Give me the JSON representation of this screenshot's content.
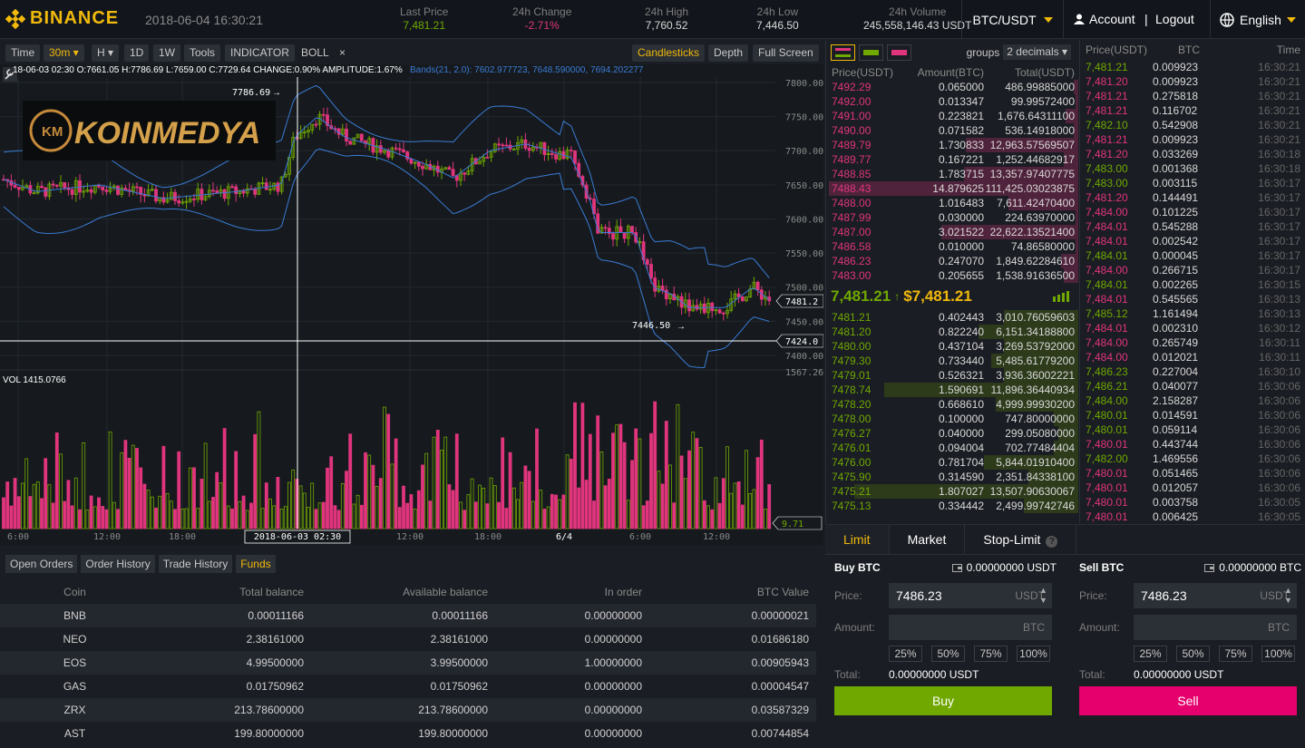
{
  "header": {
    "logo": "BINANCE",
    "datetime": "2018-06-04 16:30:21",
    "stats": [
      {
        "label": "Last Price",
        "value": "7,481.21",
        "color": "#70a800"
      },
      {
        "label": "24h Change",
        "value": "-2.71%",
        "color": "#e0357d"
      },
      {
        "label": "24h High",
        "value": "7,760.52",
        "color": "#d8d8d8"
      },
      {
        "label": "24h Low",
        "value": "7,446.50",
        "color": "#d8d8d8"
      },
      {
        "label": "24h Volume",
        "value": "245,558,146.43 USDT",
        "color": "#d8d8d8"
      }
    ],
    "pair": "BTC/USDT",
    "account": "Account",
    "sep": "|",
    "logout": "Logout",
    "language": "English"
  },
  "toolbar": {
    "time": "Time",
    "interval": "30m",
    "h": "H",
    "d1": "1D",
    "w1": "1W",
    "tools": "Tools",
    "indicator": "INDICATOR",
    "boll": "BOLL",
    "close": "×",
    "candlesticks": "Candlesticks",
    "depth": "Depth",
    "fullscreen": "Full Screen"
  },
  "chart_info": {
    "ohlc": "18-06-03 02:30  O:7661.05 H:7786.69 L:7659.00 C:7729.64 CHANGE:0.90% AMPLITUDE:1.67%",
    "bands": "Bands(21, 2.0): 7602.977723, 7648.590000, 7694.202277",
    "vol": "VOL 1415.0766",
    "high_marker": "7786.69",
    "low_marker": "7446.50",
    "price_tag": "7481.2",
    "cross_tag": "7424.0",
    "vol_max": "1567.26",
    "vol_tag": "9.71",
    "cross_time": "2018-06-03 02:30",
    "watermark": "KOINMEDYA"
  },
  "chart_data": {
    "type": "candlestick",
    "price_ticks": [
      "7800.00",
      "7750.00",
      "7700.00",
      "7650.00",
      "7600.00",
      "7550.00",
      "7500.00",
      "7450.00",
      "7400.00"
    ],
    "time_ticks": [
      "6:00",
      "12:00",
      "18:00",
      "12:00",
      "18:00",
      "6/4",
      "6:00",
      "12:00"
    ],
    "ylim": [
      7400,
      7800
    ],
    "grid": true
  },
  "bottom": {
    "tabs": [
      "Open Orders",
      "Order History",
      "Trade History",
      "Funds"
    ],
    "headers": [
      "Coin",
      "Total balance",
      "Available balance",
      "In order",
      "BTC Value"
    ],
    "rows": [
      [
        "BNB",
        "0.00011166",
        "0.00011166",
        "0.00000000",
        "0.00000021"
      ],
      [
        "NEO",
        "2.38161000",
        "2.38161000",
        "0.00000000",
        "0.01686180"
      ],
      [
        "EOS",
        "4.99500000",
        "3.99500000",
        "1.00000000",
        "0.00905943"
      ],
      [
        "GAS",
        "0.01750962",
        "0.01750962",
        "0.00000000",
        "0.00004547"
      ],
      [
        "ZRX",
        "213.78600000",
        "213.78600000",
        "0.00000000",
        "0.03587329"
      ],
      [
        "AST",
        "199.80000000",
        "199.80000000",
        "0.00000000",
        "0.00744854"
      ]
    ]
  },
  "orderbook": {
    "groups_label": "groups",
    "groups_value": "2 decimals",
    "headers": [
      "Price(USDT)",
      "Amount(BTC)",
      "Total(USDT)"
    ],
    "asks": [
      [
        "7492.29",
        "0.065000",
        "486.99885000",
        0.02
      ],
      [
        "7492.00",
        "0.013347",
        "99.99572400",
        0.01
      ],
      [
        "7491.00",
        "0.223821",
        "1,676.64311100",
        0.05
      ],
      [
        "7490.00",
        "0.071582",
        "536.14918000",
        0.02
      ],
      [
        "7489.79",
        "1.730833",
        "12,963.57569507",
        0.45
      ],
      [
        "7489.77",
        "0.167221",
        "1,252.44682917",
        0.06
      ],
      [
        "7488.85",
        "1.783715",
        "13,357.97407775",
        0.46
      ],
      [
        "7488.43",
        "14.879625",
        "111,425.03023875",
        1.0
      ],
      [
        "7488.00",
        "1.016483",
        "7,611.42470400",
        0.28
      ],
      [
        "7487.99",
        "0.030000",
        "224.63970000",
        0.01
      ],
      [
        "7487.00",
        "3.021522",
        "22,622.13521400",
        0.55
      ],
      [
        "7486.58",
        "0.010000",
        "74.86580000",
        0.01
      ],
      [
        "7486.23",
        "0.247070",
        "1,849.62284610",
        0.07
      ],
      [
        "7483.00",
        "0.205655",
        "1,538.91636500",
        0.06
      ]
    ],
    "last_price": "7,481.21",
    "last_usd": "$7,481.21",
    "bids": [
      [
        "7481.21",
        "0.402443",
        "3,010.76059603",
        0.3
      ],
      [
        "7481.20",
        "0.822240",
        "6,151.34188800",
        0.4
      ],
      [
        "7480.00",
        "0.437104",
        "3,269.53792000",
        0.3
      ],
      [
        "7479.30",
        "0.733440",
        "5,485.61779200",
        0.35
      ],
      [
        "7479.01",
        "0.526321",
        "3,936.36002221",
        0.3
      ],
      [
        "7478.74",
        "1.590691",
        "11,896.36440934",
        0.78
      ],
      [
        "7478.20",
        "0.668610",
        "4,999.99930200",
        0.33
      ],
      [
        "7478.00",
        "0.100000",
        "747.80000000",
        0.1
      ],
      [
        "7476.27",
        "0.040000",
        "299.05080000",
        0.08
      ],
      [
        "7476.01",
        "0.094004",
        "702.77484404",
        0.1
      ],
      [
        "7476.00",
        "0.781704",
        "5,844.01910400",
        0.38
      ],
      [
        "7475.90",
        "0.314590",
        "2,351.84338100",
        0.2
      ],
      [
        "7475.21",
        "1.807027",
        "13,507.90630067",
        0.9
      ],
      [
        "7475.13",
        "0.334442",
        "2,499.99742746",
        0.22
      ]
    ]
  },
  "trades": {
    "headers": [
      "Price(USDT)",
      "BTC",
      "Time"
    ],
    "rows": [
      [
        "7,481.21",
        "0.009923",
        "16:30:21",
        "g"
      ],
      [
        "7,481.20",
        "0.009923",
        "16:30:21",
        "r"
      ],
      [
        "7,481.21",
        "0.275818",
        "16:30:21",
        "r"
      ],
      [
        "7,481.21",
        "0.116702",
        "16:30:21",
        "r"
      ],
      [
        "7,482.10",
        "0.542908",
        "16:30:21",
        "g"
      ],
      [
        "7,481.21",
        "0.009923",
        "16:30:21",
        "r"
      ],
      [
        "7,481.20",
        "0.033269",
        "16:30:18",
        "r"
      ],
      [
        "7,483.00",
        "0.001368",
        "16:30:18",
        "g"
      ],
      [
        "7,483.00",
        "0.003115",
        "16:30:17",
        "g"
      ],
      [
        "7,481.20",
        "0.144491",
        "16:30:17",
        "r"
      ],
      [
        "7,484.00",
        "0.101225",
        "16:30:17",
        "r"
      ],
      [
        "7,484.01",
        "0.545288",
        "16:30:17",
        "r"
      ],
      [
        "7,484.01",
        "0.002542",
        "16:30:17",
        "r"
      ],
      [
        "7,484.01",
        "0.000045",
        "16:30:17",
        "g"
      ],
      [
        "7,484.00",
        "0.266715",
        "16:30:17",
        "r"
      ],
      [
        "7,484.01",
        "0.002265",
        "16:30:15",
        "g"
      ],
      [
        "7,484.01",
        "0.545565",
        "16:30:13",
        "r"
      ],
      [
        "7,485.12",
        "1.161494",
        "16:30:13",
        "g"
      ],
      [
        "7,484.01",
        "0.002310",
        "16:30:12",
        "r"
      ],
      [
        "7,484.00",
        "0.265749",
        "16:30:11",
        "r"
      ],
      [
        "7,484.00",
        "0.012021",
        "16:30:11",
        "r"
      ],
      [
        "7,486.23",
        "0.227004",
        "16:30:10",
        "g"
      ],
      [
        "7,486.21",
        "0.040077",
        "16:30:06",
        "g"
      ],
      [
        "7,484.00",
        "2.158287",
        "16:30:06",
        "g"
      ],
      [
        "7,480.01",
        "0.014591",
        "16:30:06",
        "g"
      ],
      [
        "7,480.01",
        "0.059114",
        "16:30:06",
        "g"
      ],
      [
        "7,480.01",
        "0.443744",
        "16:30:06",
        "r"
      ],
      [
        "7,482.00",
        "1.469556",
        "16:30:06",
        "g"
      ],
      [
        "7,480.01",
        "0.051465",
        "16:30:06",
        "r"
      ],
      [
        "7,480.01",
        "0.012057",
        "16:30:06",
        "r"
      ],
      [
        "7,480.01",
        "0.003758",
        "16:30:05",
        "r"
      ],
      [
        "7,480.01",
        "0.006425",
        "16:30:05",
        "r"
      ]
    ]
  },
  "form": {
    "tabs": [
      "Limit",
      "Market",
      "Stop-Limit"
    ],
    "buy": {
      "title": "Buy BTC",
      "balance": "0.00000000 USDT",
      "price_label": "Price:",
      "price": "7486.23",
      "price_unit": "USDT",
      "amount_label": "Amount:",
      "amount_unit": "BTC",
      "total_label": "Total:",
      "total": "0.00000000 USDT",
      "button": "Buy"
    },
    "sell": {
      "title": "Sell BTC",
      "balance": "0.00000000 BTC",
      "price_label": "Price:",
      "price": "7486.23",
      "price_unit": "USDT",
      "amount_label": "Amount:",
      "amount_unit": "BTC",
      "total_label": "Total:",
      "total": "0.00000000 USDT",
      "button": "Sell"
    },
    "pcts": [
      "25%",
      "50%",
      "75%",
      "100%"
    ]
  },
  "colors": {
    "accent": "#f0b90b",
    "up": "#70a800",
    "down": "#e0357d",
    "buy_btn": "#70a800",
    "sell_btn": "#e5006d"
  }
}
